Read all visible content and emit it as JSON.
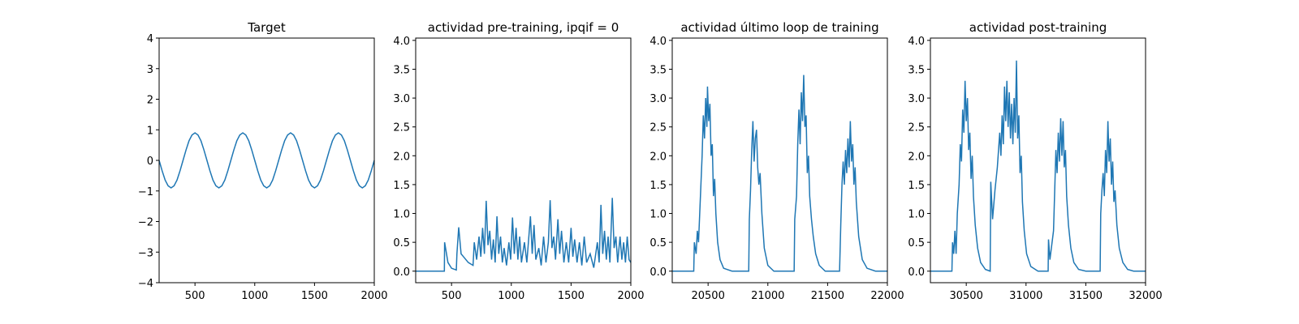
{
  "chart_data": [
    {
      "type": "line",
      "title": "Target",
      "color": "#1f77b4",
      "x": [
        200,
        225,
        250,
        275,
        300,
        325,
        350,
        375,
        400,
        425,
        450,
        475,
        500,
        525,
        550,
        575,
        600,
        625,
        650,
        675,
        700,
        725,
        750,
        775,
        800,
        825,
        850,
        875,
        900,
        925,
        950,
        975,
        1000,
        1025,
        1050,
        1075,
        1100,
        1125,
        1150,
        1175,
        1200,
        1225,
        1250,
        1275,
        1300,
        1325,
        1350,
        1375,
        1400,
        1425,
        1450,
        1475,
        1500,
        1525,
        1550,
        1575,
        1600,
        1625,
        1650,
        1675,
        1700,
        1725,
        1750,
        1775,
        1800,
        1825,
        1850,
        1875,
        1900,
        1925,
        1950,
        1975,
        2000
      ],
      "values": [
        0,
        -0.34,
        -0.64,
        -0.83,
        -0.9,
        -0.83,
        -0.64,
        -0.34,
        0,
        0.34,
        0.64,
        0.83,
        0.9,
        0.83,
        0.64,
        0.34,
        0,
        -0.34,
        -0.64,
        -0.83,
        -0.9,
        -0.83,
        -0.64,
        -0.34,
        0,
        0.34,
        0.64,
        0.83,
        0.9,
        0.83,
        0.64,
        0.34,
        0,
        -0.34,
        -0.64,
        -0.83,
        -0.9,
        -0.83,
        -0.64,
        -0.34,
        0,
        0.34,
        0.64,
        0.83,
        0.9,
        0.83,
        0.64,
        0.34,
        0,
        -0.34,
        -0.64,
        -0.83,
        -0.9,
        -0.83,
        -0.64,
        -0.34,
        0,
        0.34,
        0.64,
        0.83,
        0.9,
        0.83,
        0.64,
        0.34,
        0,
        -0.34,
        -0.64,
        -0.83,
        -0.9,
        -0.83,
        -0.64,
        -0.34,
        0
      ],
      "xlim": [
        200,
        2000
      ],
      "xticks": [
        500,
        1000,
        1500,
        2000
      ],
      "ylim": [
        -4,
        4
      ],
      "yticks": [
        {
          "value": -4,
          "label": "−4"
        },
        {
          "value": -3,
          "label": "−3"
        },
        {
          "value": -2,
          "label": "−2"
        },
        {
          "value": -1,
          "label": "−1"
        },
        0,
        1,
        2,
        3,
        4
      ]
    },
    {
      "type": "line",
      "title": "actividad pre-training, ipqif = 0",
      "color": "#1f77b4",
      "x": [
        200,
        440,
        442,
        470,
        500,
        540,
        545,
        560,
        580,
        600,
        640,
        680,
        690,
        710,
        730,
        745,
        760,
        775,
        790,
        805,
        820,
        835,
        850,
        865,
        880,
        895,
        910,
        925,
        940,
        960,
        980,
        995,
        1010,
        1025,
        1040,
        1055,
        1070,
        1085,
        1110,
        1130,
        1160,
        1175,
        1190,
        1205,
        1230,
        1250,
        1270,
        1290,
        1310,
        1325,
        1340,
        1355,
        1370,
        1390,
        1405,
        1420,
        1440,
        1460,
        1480,
        1500,
        1515,
        1530,
        1550,
        1570,
        1590,
        1610,
        1630,
        1660,
        1690,
        1720,
        1735,
        1750,
        1765,
        1780,
        1795,
        1810,
        1825,
        1845,
        1860,
        1875,
        1890,
        1910,
        1925,
        1940,
        1955,
        1970,
        1985,
        2000
      ],
      "values": [
        0,
        0,
        0.5,
        0.15,
        0.05,
        0.02,
        0.3,
        0.76,
        0.3,
        0.25,
        0.15,
        0.1,
        0.5,
        0.2,
        0.6,
        0.25,
        0.75,
        0.3,
        1.22,
        0.45,
        0.7,
        0.2,
        0.55,
        0.15,
        0.95,
        0.3,
        0.6,
        0.15,
        0.4,
        0.1,
        0.5,
        0.2,
        0.93,
        0.3,
        0.75,
        0.2,
        0.6,
        0.15,
        0.5,
        0.15,
        0.95,
        0.3,
        0.8,
        0.2,
        0.4,
        0.1,
        0.6,
        0.15,
        0.5,
        1.23,
        0.4,
        0.6,
        0.2,
        0.9,
        0.3,
        0.7,
        0.15,
        0.5,
        0.15,
        0.75,
        0.25,
        0.55,
        0.15,
        0.5,
        0.1,
        0.6,
        0.15,
        0.3,
        0.06,
        0.5,
        0.15,
        1.15,
        0.3,
        0.7,
        0.2,
        0.6,
        0.15,
        1.27,
        0.4,
        0.6,
        0.15,
        0.6,
        0.2,
        0.5,
        0.15,
        0.6,
        0.2,
        0.15
      ],
      "xlim": [
        200,
        2000
      ],
      "xticks": [
        500,
        1000,
        1500,
        2000
      ],
      "ylim": [
        -0.2,
        4.04
      ],
      "yticks": [
        {
          "value": 0,
          "label": "0.0"
        },
        {
          "value": 0.5,
          "label": "0.5"
        },
        {
          "value": 1,
          "label": "1.0"
        },
        {
          "value": 1.5,
          "label": "1.5"
        },
        {
          "value": 2,
          "label": "2.0"
        },
        {
          "value": 2.5,
          "label": "2.5"
        },
        {
          "value": 3,
          "label": "3.0"
        },
        {
          "value": 3.5,
          "label": "3.5"
        },
        {
          "value": 4,
          "label": "4.0"
        }
      ]
    },
    {
      "type": "line",
      "title": "actividad último loop de training",
      "color": "#1f77b4",
      "x": [
        20200,
        20380,
        20385,
        20400,
        20410,
        20420,
        20430,
        20440,
        20450,
        20460,
        20470,
        20480,
        20490,
        20495,
        20505,
        20515,
        20525,
        20535,
        20545,
        20555,
        20565,
        20580,
        20600,
        20630,
        20700,
        20840,
        20845,
        20855,
        20865,
        20875,
        20885,
        20895,
        20905,
        20915,
        20925,
        20935,
        20950,
        20970,
        21000,
        21050,
        21220,
        21225,
        21240,
        21250,
        21260,
        21270,
        21280,
        21290,
        21300,
        21310,
        21320,
        21330,
        21340,
        21350,
        21365,
        21380,
        21400,
        21430,
        21480,
        21600,
        21610,
        21620,
        21630,
        21640,
        21650,
        21660,
        21670,
        21680,
        21690,
        21700,
        21710,
        21720,
        21730,
        21740,
        21760,
        21790,
        21830,
        21900,
        22000
      ],
      "values": [
        0,
        0,
        0.5,
        0.3,
        0.7,
        0.5,
        1.0,
        1.5,
        2.0,
        2.7,
        2.3,
        3.0,
        2.5,
        3.2,
        2.6,
        2.9,
        2.0,
        2.2,
        1.3,
        1.6,
        1.0,
        0.5,
        0.2,
        0.05,
        0,
        0,
        0.9,
        1.4,
        2.1,
        2.6,
        1.9,
        2.3,
        2.45,
        1.8,
        1.5,
        1.7,
        1.0,
        0.4,
        0.1,
        0,
        0,
        0.9,
        1.3,
        2.2,
        2.8,
        2.2,
        3.1,
        2.6,
        3.4,
        2.5,
        2.7,
        1.7,
        2.0,
        1.3,
        0.9,
        0.6,
        0.3,
        0.1,
        0,
        0,
        0.8,
        1.5,
        1.9,
        1.5,
        2.1,
        1.7,
        2.3,
        1.8,
        2.6,
        1.9,
        2.2,
        1.5,
        1.8,
        1.2,
        0.6,
        0.2,
        0.05,
        0,
        0
      ],
      "xlim": [
        20200,
        22000
      ],
      "xticks": [
        20500,
        21000,
        21500,
        22000
      ],
      "ylim": [
        -0.2,
        4.04
      ],
      "yticks": [
        {
          "value": 0,
          "label": "0.0"
        },
        {
          "value": 0.5,
          "label": "0.5"
        },
        {
          "value": 1,
          "label": "1.0"
        },
        {
          "value": 1.5,
          "label": "1.5"
        },
        {
          "value": 2,
          "label": "2.0"
        },
        {
          "value": 2.5,
          "label": "2.5"
        },
        {
          "value": 3,
          "label": "3.0"
        },
        {
          "value": 3.5,
          "label": "3.5"
        },
        {
          "value": 4,
          "label": "4.0"
        }
      ]
    },
    {
      "type": "line",
      "title": "actividad post-training",
      "color": "#1f77b4",
      "x": [
        30200,
        30380,
        30385,
        30395,
        30405,
        30415,
        30425,
        30440,
        30450,
        30460,
        30470,
        30480,
        30490,
        30500,
        30510,
        30520,
        30530,
        30540,
        30550,
        30560,
        30575,
        30595,
        30620,
        30660,
        30700,
        30705,
        30720,
        30740,
        30760,
        30780,
        30790,
        30800,
        30810,
        30820,
        30830,
        30840,
        30850,
        30860,
        30870,
        30880,
        30890,
        30900,
        30910,
        30920,
        30930,
        30940,
        30950,
        30960,
        30970,
        30985,
        31005,
        31040,
        31100,
        31185,
        31188,
        31200,
        31230,
        31240,
        31250,
        31260,
        31270,
        31280,
        31290,
        31300,
        31310,
        31320,
        31330,
        31340,
        31355,
        31375,
        31400,
        31440,
        31500,
        31620,
        31625,
        31635,
        31645,
        31655,
        31665,
        31675,
        31685,
        31695,
        31705,
        31715,
        31725,
        31735,
        31745,
        31760,
        31780,
        31810,
        31850,
        31900,
        32000
      ],
      "values": [
        0,
        0,
        0.5,
        0.3,
        0.7,
        0.3,
        1.0,
        1.5,
        2.2,
        1.9,
        2.8,
        2.4,
        3.3,
        2.6,
        3.0,
        2.1,
        2.4,
        1.6,
        2.0,
        1.3,
        0.8,
        0.4,
        0.15,
        0.03,
        0,
        1.55,
        0.9,
        1.4,
        1.8,
        2.4,
        2.0,
        2.7,
        2.2,
        3.2,
        2.6,
        3.3,
        2.5,
        3.1,
        2.3,
        2.9,
        2.2,
        3.0,
        2.4,
        3.65,
        2.3,
        2.7,
        1.7,
        2.0,
        1.2,
        0.7,
        0.3,
        0.08,
        0,
        0,
        0.55,
        0.2,
        0.7,
        1.4,
        2.1,
        1.7,
        2.4,
        1.9,
        2.65,
        2.0,
        2.6,
        1.8,
        2.1,
        1.3,
        0.8,
        0.4,
        0.15,
        0.03,
        0,
        0,
        1.0,
        1.4,
        1.7,
        1.3,
        2.1,
        1.7,
        2.6,
        1.9,
        2.3,
        1.5,
        1.9,
        1.2,
        1.4,
        0.8,
        0.4,
        0.15,
        0.03,
        0,
        0
      ],
      "xlim": [
        30200,
        32000
      ],
      "xticks": [
        30500,
        31000,
        31500,
        32000
      ],
      "ylim": [
        -0.2,
        4.04
      ],
      "yticks": [
        {
          "value": 0,
          "label": "0.0"
        },
        {
          "value": 0.5,
          "label": "0.5"
        },
        {
          "value": 1,
          "label": "1.0"
        },
        {
          "value": 1.5,
          "label": "1.5"
        },
        {
          "value": 2,
          "label": "2.0"
        },
        {
          "value": 2.5,
          "label": "2.5"
        },
        {
          "value": 3,
          "label": "3.0"
        },
        {
          "value": 3.5,
          "label": "3.5"
        },
        {
          "value": 4,
          "label": "4.0"
        }
      ]
    }
  ]
}
